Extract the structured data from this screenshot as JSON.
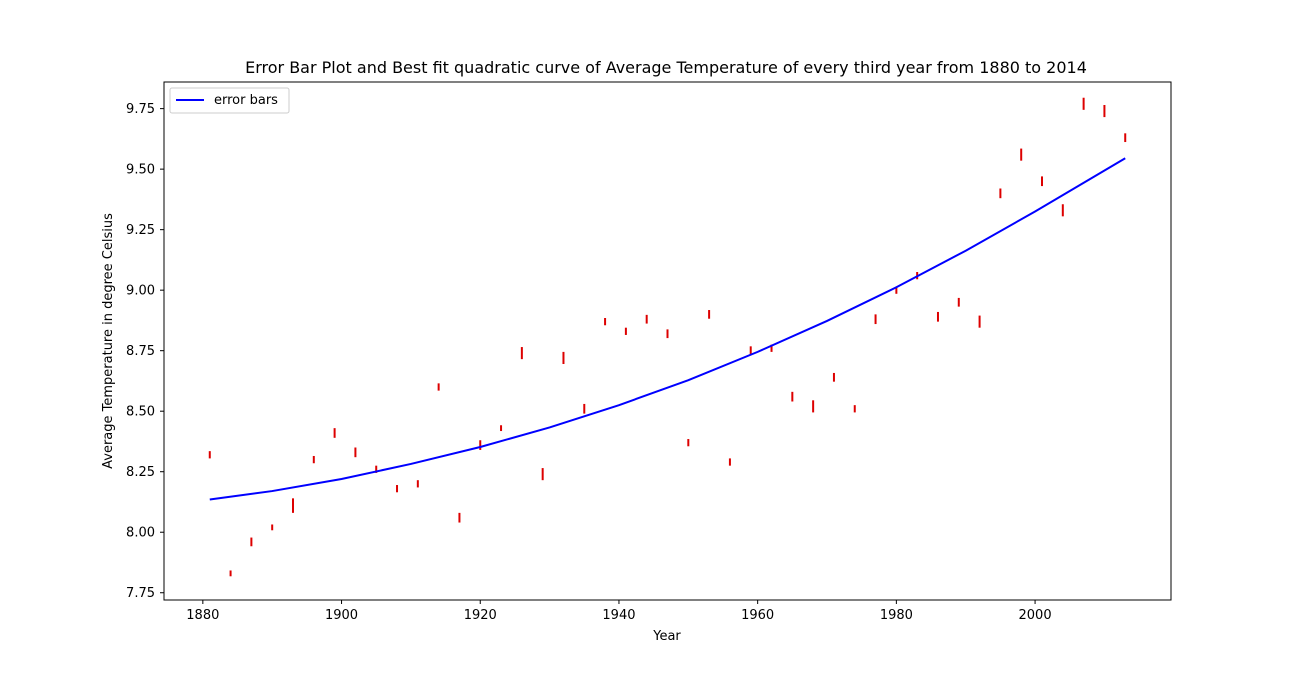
{
  "chart_data": {
    "type": "scatter",
    "title": "Error Bar Plot and Best fit quadratic curve of Average Temperature of every third year from 1880 to 2014",
    "xlabel": "Year",
    "ylabel": "Average Temperature in degree Celsius",
    "xlim": [
      1874.4,
      2019.6
    ],
    "ylim": [
      7.72,
      9.86
    ],
    "xticks": [
      1880,
      1900,
      1920,
      1940,
      1960,
      1980,
      2000
    ],
    "yticks": [
      7.75,
      8.0,
      8.25,
      8.5,
      8.75,
      9.0,
      9.25,
      9.5,
      9.75
    ],
    "grid": false,
    "legend": {
      "position": "top-left",
      "entries": [
        {
          "label": "error bars",
          "color": "#0000ff"
        }
      ]
    },
    "colors": {
      "error_bar": "#dd0000",
      "fit_line": "#0000ff"
    },
    "error_bars": {
      "x": [
        1881,
        1884,
        1887,
        1890,
        1893,
        1896,
        1899,
        1902,
        1905,
        1908,
        1911,
        1914,
        1917,
        1920,
        1923,
        1926,
        1929,
        1932,
        1935,
        1938,
        1941,
        1944,
        1947,
        1950,
        1953,
        1956,
        1959,
        1962,
        1965,
        1968,
        1971,
        1974,
        1977,
        1980,
        1983,
        1986,
        1989,
        1992,
        1995,
        1998,
        2001,
        2004,
        2007,
        2010,
        2013
      ],
      "y": [
        8.32,
        7.83,
        7.96,
        8.02,
        8.11,
        8.3,
        8.41,
        8.33,
        8.26,
        8.18,
        8.2,
        8.6,
        8.06,
        8.36,
        8.43,
        8.74,
        8.24,
        8.72,
        8.51,
        8.87,
        8.83,
        8.88,
        8.82,
        8.37,
        8.9,
        8.29,
        8.75,
        8.76,
        8.56,
        8.52,
        8.64,
        8.51,
        8.88,
        9.0,
        9.06,
        8.89,
        8.95,
        8.87,
        9.4,
        9.56,
        9.45,
        9.33,
        9.77,
        9.74,
        9.63
      ],
      "err": [
        0.015,
        0.012,
        0.018,
        0.012,
        0.03,
        0.015,
        0.02,
        0.02,
        0.015,
        0.015,
        0.015,
        0.015,
        0.02,
        0.02,
        0.012,
        0.025,
        0.025,
        0.025,
        0.02,
        0.015,
        0.015,
        0.018,
        0.018,
        0.015,
        0.018,
        0.015,
        0.018,
        0.015,
        0.02,
        0.025,
        0.018,
        0.015,
        0.02,
        0.015,
        0.015,
        0.02,
        0.018,
        0.025,
        0.02,
        0.025,
        0.02,
        0.025,
        0.025,
        0.025,
        0.018
      ]
    },
    "series": [
      {
        "name": "error bars",
        "x": [
          1881,
          1890,
          1900,
          1910,
          1920,
          1930,
          1940,
          1950,
          1960,
          1970,
          1980,
          1990,
          2000,
          2013
        ],
        "y": [
          8.135,
          8.17,
          8.22,
          8.282,
          8.352,
          8.433,
          8.525,
          8.628,
          8.745,
          8.873,
          9.012,
          9.163,
          9.325,
          9.545
        ]
      }
    ]
  }
}
